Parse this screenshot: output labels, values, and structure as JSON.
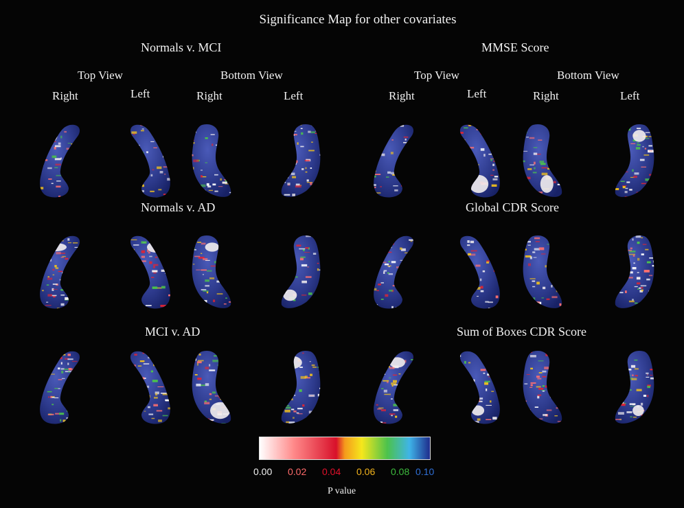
{
  "figure": {
    "title": "Significance Map for other covariates"
  },
  "groups": [
    {
      "title": "Normals v. MCI"
    },
    {
      "title": "MMSE Score"
    },
    {
      "title": "Normals v. AD"
    },
    {
      "title": "Global CDR Score"
    },
    {
      "title": "MCI v. AD"
    },
    {
      "title": "Sum of Boxes CDR Score"
    }
  ],
  "view_headers": {
    "top_view": "Top View",
    "bottom_view": "Bottom View",
    "right": "Right",
    "left": "Left"
  },
  "colorbar": {
    "label": "P value",
    "ticks": [
      {
        "value": "0.00",
        "color": "#f2f2f2"
      },
      {
        "value": "0.02",
        "color": "#ff6b6b"
      },
      {
        "value": "0.04",
        "color": "#e0102a"
      },
      {
        "value": "0.06",
        "color": "#f2b31c"
      },
      {
        "value": "0.08",
        "color": "#3dbb3d"
      },
      {
        "value": "0.10",
        "color": "#2f6fd6"
      }
    ],
    "range": [
      0.0,
      0.1
    ]
  },
  "colors": {
    "background": "#050505",
    "hippocampus_base": "#2d3a8c",
    "significant_high": "#f5f0f0",
    "significant_mid": "#e02535"
  }
}
